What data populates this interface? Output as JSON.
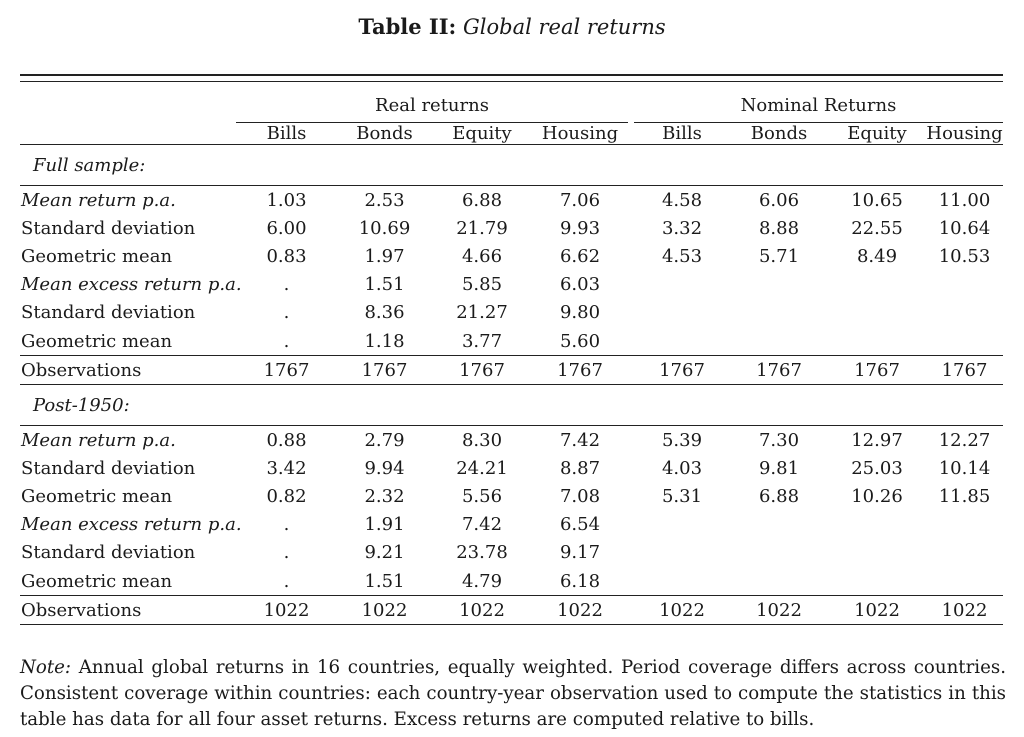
{
  "title": {
    "label": "Table II:",
    "text": "Global real returns"
  },
  "groups": {
    "real": "Real returns",
    "nominal": "Nominal Returns"
  },
  "columns": [
    "Bills",
    "Bonds",
    "Equity",
    "Housing",
    "Bills",
    "Bonds",
    "Equity",
    "Housing"
  ],
  "sections": [
    {
      "heading": "Full sample:",
      "rows": [
        {
          "label": "Mean return p.a.",
          "italic": true,
          "values": [
            "1.03",
            "2.53",
            "6.88",
            "7.06",
            "4.58",
            "6.06",
            "10.65",
            "11.00"
          ]
        },
        {
          "label": "Standard deviation",
          "italic": false,
          "values": [
            "6.00",
            "10.69",
            "21.79",
            "9.93",
            "3.32",
            "8.88",
            "22.55",
            "10.64"
          ]
        },
        {
          "label": "Geometric mean",
          "italic": false,
          "values": [
            "0.83",
            "1.97",
            "4.66",
            "6.62",
            "4.53",
            "5.71",
            "8.49",
            "10.53"
          ]
        },
        {
          "label": "Mean excess return p.a.",
          "italic": true,
          "values": [
            ".",
            "1.51",
            "5.85",
            "6.03",
            "",
            "",
            "",
            ""
          ]
        },
        {
          "label": "Standard deviation",
          "italic": false,
          "values": [
            ".",
            "8.36",
            "21.27",
            "9.80",
            "",
            "",
            "",
            ""
          ]
        },
        {
          "label": "Geometric mean",
          "italic": false,
          "values": [
            ".",
            "1.18",
            "3.77",
            "5.60",
            "",
            "",
            "",
            ""
          ]
        }
      ],
      "observations": {
        "label": "Observations",
        "values": [
          "1767",
          "1767",
          "1767",
          "1767",
          "1767",
          "1767",
          "1767",
          "1767"
        ]
      }
    },
    {
      "heading": "Post-1950:",
      "rows": [
        {
          "label": "Mean return p.a.",
          "italic": true,
          "values": [
            "0.88",
            "2.79",
            "8.30",
            "7.42",
            "5.39",
            "7.30",
            "12.97",
            "12.27"
          ]
        },
        {
          "label": "Standard deviation",
          "italic": false,
          "values": [
            "3.42",
            "9.94",
            "24.21",
            "8.87",
            "4.03",
            "9.81",
            "25.03",
            "10.14"
          ]
        },
        {
          "label": "Geometric mean",
          "italic": false,
          "values": [
            "0.82",
            "2.32",
            "5.56",
            "7.08",
            "5.31",
            "6.88",
            "10.26",
            "11.85"
          ]
        },
        {
          "label": "Mean excess return p.a.",
          "italic": true,
          "values": [
            ".",
            "1.91",
            "7.42",
            "6.54",
            "",
            "",
            "",
            ""
          ]
        },
        {
          "label": "Standard deviation",
          "italic": false,
          "values": [
            ".",
            "9.21",
            "23.78",
            "9.17",
            "",
            "",
            "",
            ""
          ]
        },
        {
          "label": "Geometric mean",
          "italic": false,
          "values": [
            ".",
            "1.51",
            "4.79",
            "6.18",
            "",
            "",
            "",
            ""
          ]
        }
      ],
      "observations": {
        "label": "Observations",
        "values": [
          "1022",
          "1022",
          "1022",
          "1022",
          "1022",
          "1022",
          "1022",
          "1022"
        ]
      }
    }
  ],
  "note": {
    "label": "Note:",
    "text": "Annual global returns in 16 countries, equally weighted. Period coverage differs across countries. Consistent coverage within countries: each country-year observation used to compute the statistics in this table has data for all four asset returns. Excess returns are computed relative to bills."
  }
}
